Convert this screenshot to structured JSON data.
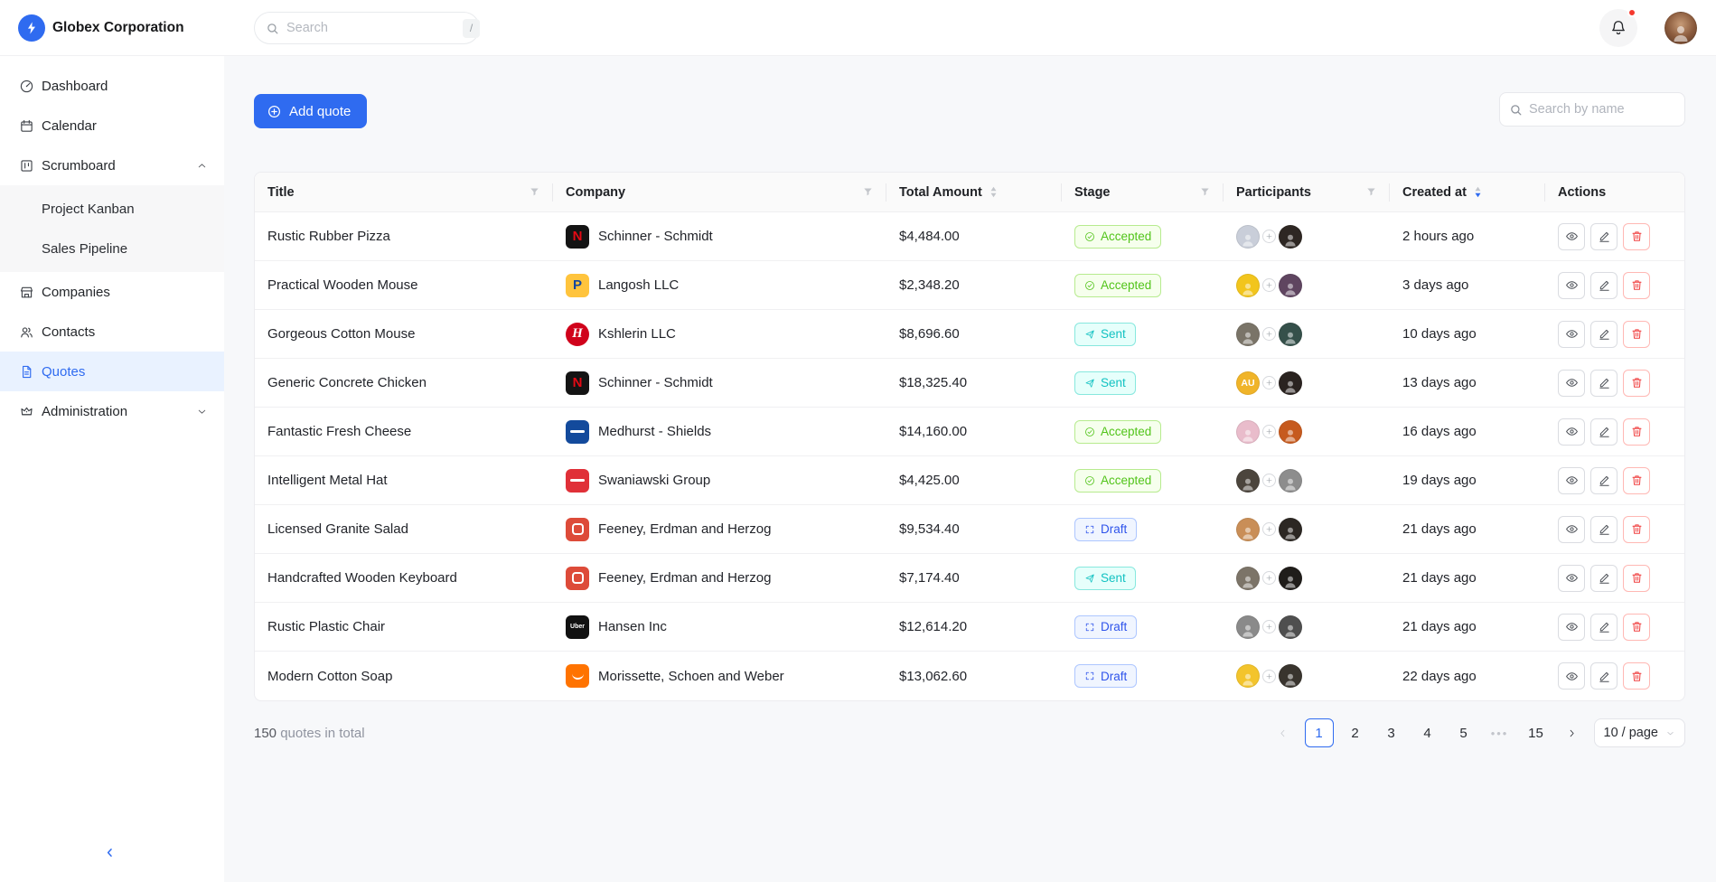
{
  "brand": {
    "name": "Globex Corporation",
    "logo_icon": "bolt-icon",
    "accent_color": "#2f6bf0"
  },
  "topbar": {
    "search_placeholder": "Search",
    "search_shortcut": "/",
    "notifications": {
      "icon": "bell-icon",
      "has_unread": true,
      "unread_dot_color": "#f5392e"
    }
  },
  "sidebar": {
    "items": [
      {
        "label": "Dashboard",
        "icon": "dashboard-icon"
      },
      {
        "label": "Calendar",
        "icon": "calendar-icon"
      },
      {
        "label": "Scrumboard",
        "icon": "scrumboard-icon",
        "expanded": true,
        "children": [
          "Project Kanban",
          "Sales Pipeline"
        ]
      },
      {
        "label": "Companies",
        "icon": "companies-icon"
      },
      {
        "label": "Contacts",
        "icon": "contacts-icon"
      },
      {
        "label": "Quotes",
        "icon": "quotes-icon",
        "active": true
      },
      {
        "label": "Administration",
        "icon": "crown-icon",
        "expanded": false
      }
    ]
  },
  "toolbar": {
    "add_label": "Add quote",
    "add_icon": "plus-circle-icon",
    "search_placeholder": "Search by name"
  },
  "table": {
    "columns": [
      {
        "label": "Title",
        "control": "filter"
      },
      {
        "label": "Company",
        "control": "filter"
      },
      {
        "label": "Total Amount",
        "control": "sort",
        "sort": "none"
      },
      {
        "label": "Stage",
        "control": "filter"
      },
      {
        "label": "Participants",
        "control": "filter"
      },
      {
        "label": "Created at",
        "control": "sort",
        "sort": "desc"
      },
      {
        "label": "Actions",
        "control": "none"
      }
    ],
    "rows": [
      {
        "title": "Rustic Rubber Pizza",
        "company": "Schinner - Schmidt",
        "amount": "$4,484.00",
        "stage": "Accepted",
        "created": "2 hours ago",
        "logo": {
          "shape": "square",
          "bg": "#141414",
          "type": "letter",
          "glyph": "N",
          "fg": "#e50914"
        },
        "participants": [
          {
            "bg": "#c9ced9"
          },
          {
            "bg": "#2e2723"
          }
        ]
      },
      {
        "title": "Practical Wooden Mouse",
        "company": "Langosh LLC",
        "amount": "$2,348.20",
        "stage": "Accepted",
        "created": "3 days ago",
        "logo": {
          "shape": "square",
          "bg": "#ffc43d",
          "type": "letter",
          "glyph": "P",
          "fg": "#1546a0"
        },
        "participants": [
          {
            "bg": "#f2c51d"
          },
          {
            "bg": "#5f4560"
          }
        ]
      },
      {
        "title": "Gorgeous Cotton Mouse",
        "company": "Kshlerin LLC",
        "amount": "$8,696.60",
        "stage": "Sent",
        "created": "10 days ago",
        "logo": {
          "shape": "circle",
          "bg": "#d0021b",
          "type": "letter",
          "glyph": "H",
          "fg": "#ffffff",
          "italic": true
        },
        "participants": [
          {
            "bg": "#7a7468"
          },
          {
            "bg": "#35504a"
          }
        ]
      },
      {
        "title": "Generic Concrete Chicken",
        "company": "Schinner - Schmidt",
        "amount": "$18,325.40",
        "stage": "Sent",
        "created": "13 days ago",
        "logo": {
          "shape": "square",
          "bg": "#141414",
          "type": "letter",
          "glyph": "N",
          "fg": "#e50914"
        },
        "participants": [
          {
            "bg": "#f0b429",
            "initials": "AU"
          },
          {
            "bg": "#2a2320"
          }
        ]
      },
      {
        "title": "Fantastic Fresh Cheese",
        "company": "Medhurst - Shields",
        "amount": "$14,160.00",
        "stage": "Accepted",
        "created": "16 days ago",
        "logo": {
          "shape": "square",
          "bg": "#134a9c",
          "type": "wordmark",
          "fg": "#ffffff"
        },
        "participants": [
          {
            "bg": "#e9bccb"
          },
          {
            "bg": "#c65a1e"
          }
        ]
      },
      {
        "title": "Intelligent Metal Hat",
        "company": "Swaniawski Group",
        "amount": "$4,425.00",
        "stage": "Accepted",
        "created": "19 days ago",
        "logo": {
          "shape": "square",
          "bg": "#e03038",
          "type": "wordmark",
          "fg": "#ffffff"
        },
        "participants": [
          {
            "bg": "#4c453d"
          },
          {
            "bg": "#8d8d8d"
          }
        ]
      },
      {
        "title": "Licensed Granite Salad",
        "company": "Feeney, Erdman and Herzog",
        "amount": "$9,534.40",
        "stage": "Draft",
        "created": "21 days ago",
        "logo": {
          "shape": "square",
          "bg": "#dd4b39",
          "type": "ring",
          "fg": "#ffffff"
        },
        "participants": [
          {
            "bg": "#c98e57"
          },
          {
            "bg": "#2c2723"
          }
        ]
      },
      {
        "title": "Handcrafted Wooden Keyboard",
        "company": "Feeney, Erdman and Herzog",
        "amount": "$7,174.40",
        "stage": "Sent",
        "created": "21 days ago",
        "logo": {
          "shape": "square",
          "bg": "#dd4b39",
          "type": "ring",
          "fg": "#ffffff"
        },
        "participants": [
          {
            "bg": "#7c7468"
          },
          {
            "bg": "#201d1a"
          }
        ]
      },
      {
        "title": "Rustic Plastic Chair",
        "company": "Hansen Inc",
        "amount": "$12,614.20",
        "stage": "Draft",
        "created": "21 days ago",
        "logo": {
          "shape": "square",
          "bg": "#111111",
          "type": "word",
          "glyph": "Uber",
          "fg": "#ffffff"
        },
        "participants": [
          {
            "bg": "#8a8a8a"
          },
          {
            "bg": "#4f4f4f"
          }
        ]
      },
      {
        "title": "Modern Cotton Soap",
        "company": "Morissette, Schoen and Weber",
        "amount": "$13,062.60",
        "stage": "Draft",
        "created": "22 days ago",
        "logo": {
          "shape": "square",
          "bg": "#ff7300",
          "type": "smile",
          "fg": "#ffffff"
        },
        "participants": [
          {
            "bg": "#f3c42c"
          },
          {
            "bg": "#39342e"
          }
        ]
      }
    ],
    "row_actions": [
      "view",
      "edit",
      "delete"
    ]
  },
  "stage_styles": {
    "Accepted": {
      "bg": "#f6ffed",
      "border": "#b7eb8f",
      "color": "#52c41a",
      "icon": "check-circle-icon"
    },
    "Sent": {
      "bg": "#e6fffb",
      "border": "#87e8de",
      "color": "#13c2c2",
      "icon": "send-icon"
    },
    "Draft": {
      "bg": "#f0f5ff",
      "border": "#adc6ff",
      "color": "#2f54eb",
      "icon": "expand-icon"
    }
  },
  "footer": {
    "total_count": "150",
    "total_label": "quotes in total",
    "pages": [
      {
        "label": "1",
        "active": true
      },
      {
        "label": "2"
      },
      {
        "label": "3"
      },
      {
        "label": "4"
      },
      {
        "label": "5"
      },
      {
        "label": "•••",
        "ellipsis": true
      },
      {
        "label": "15"
      }
    ],
    "prev_enabled": false,
    "next_enabled": true,
    "page_size_label": "10 / page"
  }
}
